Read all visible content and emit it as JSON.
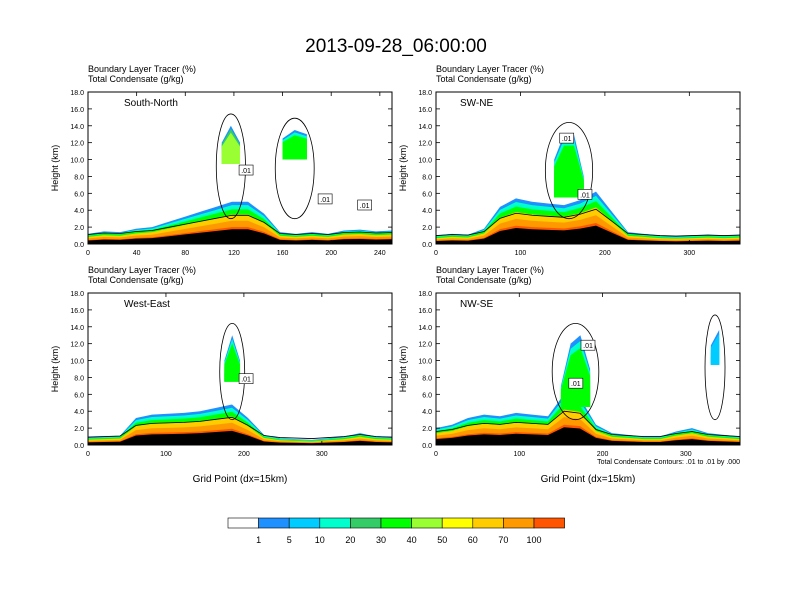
{
  "title": "2013-09-28_06:00:00",
  "chart_data": [
    {
      "type": "heatmap",
      "panel_label": "South-North",
      "subtitle_lines": [
        "Boundary Layer Tracer   (%)",
        "Total Condensate   (g/kg)"
      ],
      "ylabel": "Height (km)",
      "xlabel": "",
      "xlim": [
        0,
        250
      ],
      "ylim": [
        0,
        18
      ],
      "xticks": [
        "0",
        "40",
        "80",
        "120",
        "160",
        "200",
        "240"
      ],
      "yticks": [
        "0.0",
        "2.0",
        "4.0",
        "6.0",
        "8.0",
        "10.0",
        "12.0",
        "14.0",
        "16.0",
        "18.0"
      ],
      "contour_labels": [
        ".01",
        ".01",
        ".01"
      ],
      "color_series": [
        {
          "start": 0,
          "end": 250,
          "boundary": [
            1.2,
            1.5,
            1.4,
            1.8,
            2.0,
            2.6,
            3.2,
            3.8,
            4.4,
            5.0,
            5.0,
            3.6,
            1.4,
            1.2,
            1.4,
            1.2,
            1.6,
            1.7,
            1.5,
            1.6
          ],
          "level": 100
        },
        {
          "start": 110,
          "end": 125,
          "boundary": [
            12.0,
            14.0,
            12.0
          ],
          "level": 40
        },
        {
          "start": 160,
          "end": 180,
          "boundary": [
            12.5,
            13.5,
            13.0
          ],
          "level": 30
        }
      ]
    },
    {
      "type": "heatmap",
      "panel_label": "SW-NE",
      "subtitle_lines": [
        "Boundary Layer Tracer   (%)",
        "Total Condensate   (g/kg)"
      ],
      "ylabel": "Height (km)",
      "xlabel": "",
      "xlim": [
        0,
        360
      ],
      "ylim": [
        0,
        18
      ],
      "xticks": [
        "0",
        "100",
        "200",
        "300"
      ],
      "yticks": [
        "0.0",
        "2.0",
        "4.0",
        "6.0",
        "8.0",
        "10.0",
        "12.0",
        "14.0",
        "16.0",
        "18.0"
      ],
      "contour_labels": [
        ".01",
        ".01"
      ],
      "color_series": [
        {
          "start": 0,
          "end": 360,
          "boundary": [
            1.0,
            1.2,
            1.1,
            1.8,
            4.4,
            5.4,
            5.0,
            4.8,
            4.6,
            5.2,
            6.2,
            3.8,
            1.4,
            1.2,
            1.0,
            0.9,
            1.0,
            1.1,
            1.0,
            1.1
          ],
          "level": 100
        },
        {
          "start": 140,
          "end": 175,
          "boundary": [
            10.0,
            13.0,
            13.0,
            8.0
          ],
          "level": 30
        }
      ]
    },
    {
      "type": "heatmap",
      "panel_label": "West-East",
      "subtitle_lines": [
        "Boundary Layer Tracer   (%)",
        "Total Condensate   (g/kg)"
      ],
      "ylabel": "Height (km)",
      "xlabel": "Grid Point (dx=15km)",
      "xlim": [
        0,
        390
      ],
      "ylim": [
        0,
        18
      ],
      "xticks": [
        "0",
        "100",
        "200",
        "300"
      ],
      "yticks": [
        "0.0",
        "2.0",
        "4.0",
        "6.0",
        "8.0",
        "10.0",
        "12.0",
        "14.0",
        "16.0",
        "18.0"
      ],
      "contour_labels": [
        ".01"
      ],
      "color_series": [
        {
          "start": 0,
          "end": 390,
          "boundary": [
            0.9,
            1.0,
            1.1,
            3.2,
            3.6,
            3.7,
            3.8,
            4.0,
            4.4,
            4.8,
            3.2,
            1.2,
            0.8,
            0.7,
            0.6,
            0.8,
            1.0,
            1.4,
            1.0,
            0.9
          ],
          "level": 100
        },
        {
          "start": 175,
          "end": 195,
          "boundary": [
            10.0,
            13.0,
            10.0
          ],
          "level": 30
        }
      ]
    },
    {
      "type": "heatmap",
      "panel_label": "NW-SE",
      "subtitle_lines": [
        "Boundary Layer Tracer   (%)",
        "Total Condensate   (g/kg)"
      ],
      "ylabel": "Height (km)",
      "xlabel": "Grid Point (dx=15km)",
      "xlim": [
        0,
        365
      ],
      "ylim": [
        0,
        18
      ],
      "xticks": [
        "0",
        "100",
        "200",
        "300"
      ],
      "yticks": [
        "0.0",
        "2.0",
        "4.0",
        "6.0",
        "8.0",
        "10.0",
        "12.0",
        "14.0",
        "16.0",
        "18.0"
      ],
      "contour_labels": [
        ".01",
        ".01"
      ],
      "footnote": "Total Condensate Contours: .01 to .01 by .000",
      "color_series": [
        {
          "start": 0,
          "end": 365,
          "boundary": [
            2.0,
            2.4,
            3.2,
            3.6,
            3.4,
            3.8,
            3.6,
            3.4,
            6.0,
            5.6,
            2.4,
            1.4,
            1.2,
            1.0,
            1.0,
            1.6,
            2.0,
            1.4,
            1.2,
            1.0
          ],
          "level": 100
        },
        {
          "start": 150,
          "end": 185,
          "boundary": [
            7.0,
            12.0,
            13.0,
            9.0
          ],
          "level": 30
        },
        {
          "start": 330,
          "end": 340,
          "boundary": [
            12.0,
            14.0
          ],
          "level": 5
        }
      ]
    }
  ],
  "colorbar": {
    "levels": [
      "1",
      "5",
      "10",
      "20",
      "30",
      "40",
      "50",
      "60",
      "70",
      "100"
    ],
    "colors": [
      "#ffffff",
      "#1e90ff",
      "#00ccff",
      "#00ffcc",
      "#33cc66",
      "#00ff00",
      "#99ff33",
      "#ffff00",
      "#ffcc00",
      "#ff9900",
      "#ff5500",
      "#ff0000"
    ]
  }
}
